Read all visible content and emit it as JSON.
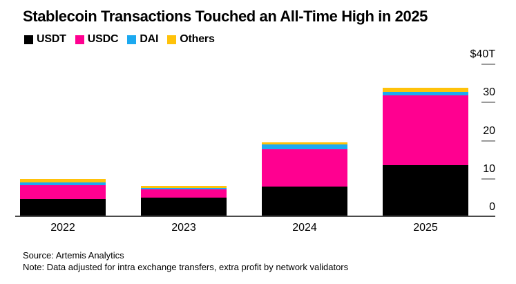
{
  "chart_data": {
    "type": "bar",
    "stacked": true,
    "title": "Stablecoin Transactions Touched an All-Time High in 2025",
    "unit": "USD trillions",
    "categories": [
      "2022",
      "2023",
      "2024",
      "2025"
    ],
    "series": [
      {
        "name": "USDT",
        "color": "#000000",
        "values": [
          4.3,
          4.8,
          7.7,
          13.3
        ]
      },
      {
        "name": "USDC",
        "color": "#ff0090",
        "values": [
          3.6,
          2.1,
          9.7,
          18.2
        ]
      },
      {
        "name": "DAI",
        "color": "#1ca9f0",
        "values": [
          0.7,
          0.4,
          1.2,
          0.9
        ]
      },
      {
        "name": "Others",
        "color": "#ffc20a",
        "values": [
          1.0,
          0.5,
          0.6,
          1.1
        ]
      }
    ],
    "totals": [
      9.6,
      7.8,
      19.2,
      33.5
    ],
    "y_axis": {
      "position": "right",
      "ylim": [
        0,
        40
      ],
      "grid": false,
      "ticks": [
        {
          "label": "$40T",
          "value": 40
        },
        {
          "label": "30",
          "value": 30
        },
        {
          "label": "20",
          "value": 20
        },
        {
          "label": "10",
          "value": 10
        },
        {
          "label": "0",
          "value": 0
        }
      ]
    },
    "legend_position": "top-left"
  },
  "footer": {
    "source": "Source: Artemis Analytics",
    "note": "Note: Data adjusted for intra exchange transfers, extra profit by network validators"
  }
}
